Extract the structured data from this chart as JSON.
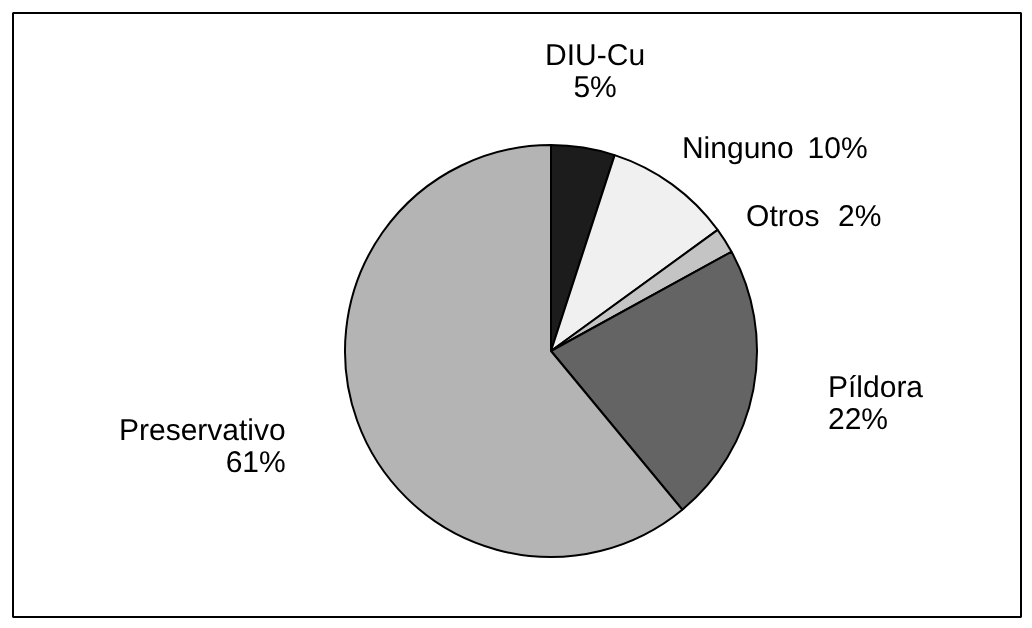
{
  "chart_data": {
    "type": "pie",
    "categories": [
      "DIU-Cu",
      "Ninguno",
      "Otros",
      "Píldora",
      "Preservativo"
    ],
    "values": [
      5,
      10,
      2,
      22,
      61
    ],
    "colors": [
      "#1c1c1c",
      "#f0f0f0",
      "#c4c4c4",
      "#646464",
      "#b4b4b4"
    ],
    "value_labels": [
      "5%",
      "10%",
      "2%",
      "22%",
      "61%"
    ]
  }
}
